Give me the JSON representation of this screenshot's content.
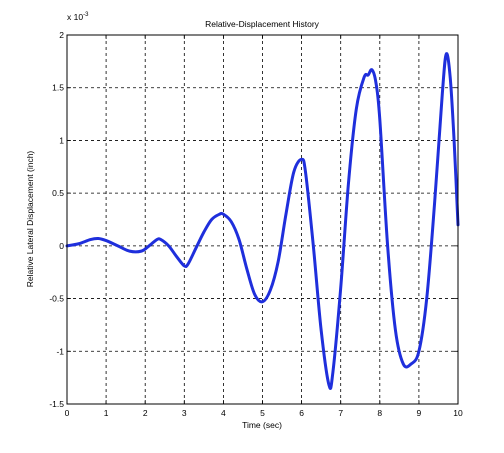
{
  "chart_data": {
    "type": "line",
    "title": "Relative-Displacement History",
    "xlabel": "Time (sec)",
    "ylabel": "Relative Lateral Displacement (inch)",
    "y_multiplier": {
      "base": "x 10",
      "exponent": "-3"
    },
    "xlim": [
      0,
      10
    ],
    "ylim": [
      -1.5,
      2
    ],
    "x_ticks": [
      0,
      1,
      2,
      3,
      4,
      5,
      6,
      7,
      8,
      9,
      10
    ],
    "x_tick_labels": [
      "0",
      "1",
      "2",
      "3",
      "4",
      "5",
      "6",
      "7",
      "8",
      "9",
      "10"
    ],
    "y_ticks": [
      -1.5,
      -1,
      -0.5,
      0,
      0.5,
      1,
      1.5,
      2
    ],
    "y_tick_labels": [
      "-1.5",
      "-1",
      "-0.5",
      "0",
      "0.5",
      "1",
      "1.5",
      "2"
    ],
    "grid": true,
    "series_color": "#1f2fdc",
    "series": [
      {
        "x": [
          0,
          0.3,
          0.6,
          0.8,
          1.0,
          1.3,
          1.6,
          1.9,
          2.1,
          2.3,
          2.4,
          2.6,
          2.8,
          3.0,
          3.1,
          3.3,
          3.5,
          3.7,
          3.9,
          4.0,
          4.2,
          4.4,
          4.6,
          4.8,
          5.0,
          5.2,
          5.4,
          5.6,
          5.8,
          6.0,
          6.1,
          6.3,
          6.5,
          6.7,
          6.8,
          7.0,
          7.2,
          7.4,
          7.6,
          7.7,
          7.8,
          7.9,
          8.0,
          8.2,
          8.4,
          8.6,
          8.8,
          9.0,
          9.2,
          9.4,
          9.6,
          9.7,
          9.8,
          9.9,
          10.0
        ],
        "y": [
          0,
          0.02,
          0.06,
          0.07,
          0.05,
          0.0,
          -0.05,
          -0.05,
          0.0,
          0.06,
          0.06,
          0.0,
          -0.1,
          -0.19,
          -0.17,
          -0.02,
          0.13,
          0.25,
          0.3,
          0.3,
          0.23,
          0.06,
          -0.22,
          -0.46,
          -0.53,
          -0.42,
          -0.15,
          0.3,
          0.7,
          0.82,
          0.7,
          0.0,
          -0.8,
          -1.32,
          -1.2,
          -0.4,
          0.6,
          1.3,
          1.6,
          1.62,
          1.67,
          1.55,
          1.2,
          0.0,
          -0.8,
          -1.12,
          -1.12,
          -1.0,
          -0.5,
          0.4,
          1.45,
          1.82,
          1.6,
          1.0,
          0.2
        ]
      }
    ]
  }
}
